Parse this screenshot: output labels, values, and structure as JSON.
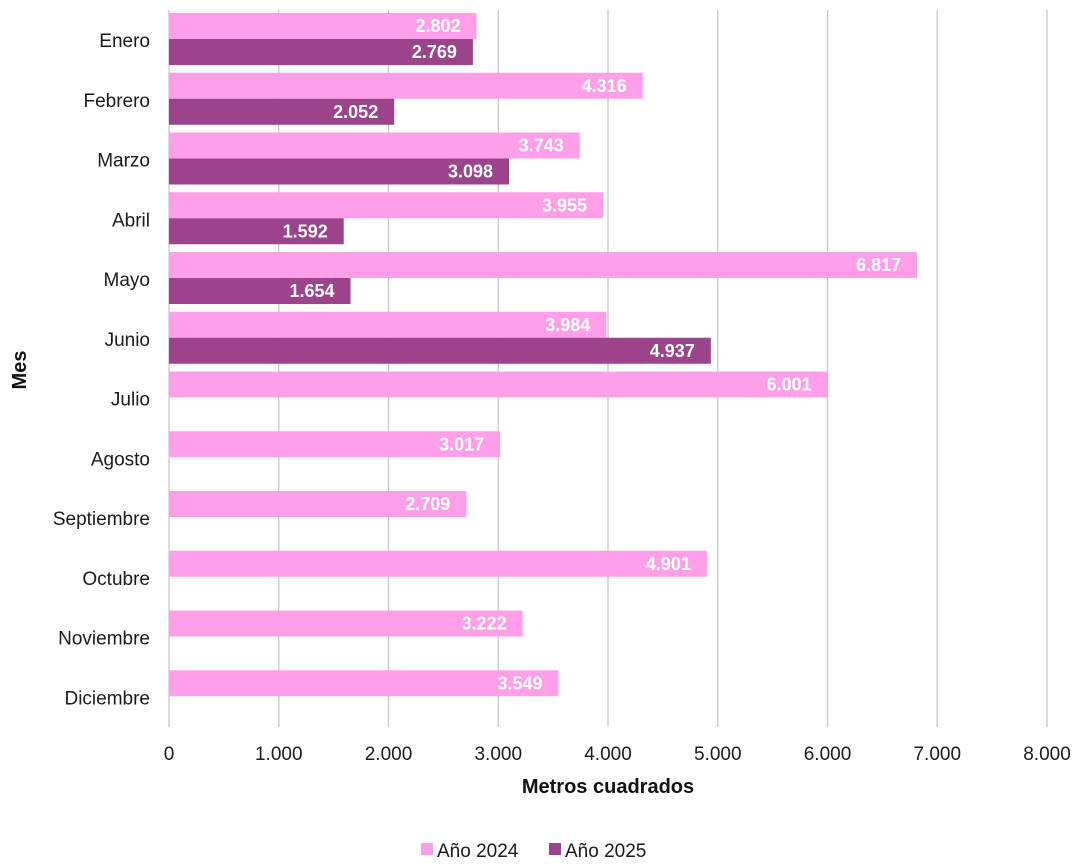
{
  "chart_data": {
    "type": "bar",
    "orientation": "horizontal",
    "categories": [
      "Enero",
      "Febrero",
      "Marzo",
      "Abril",
      "Mayo",
      "Junio",
      "Julio",
      "Agosto",
      "Septiembre",
      "Octubre",
      "Noviembre",
      "Diciembre"
    ],
    "series": [
      {
        "name": "Año 2024",
        "color": "#ff9fe8",
        "values": [
          2802,
          4316,
          3743,
          3955,
          6817,
          3984,
          6001,
          3017,
          2709,
          4901,
          3222,
          3549
        ],
        "labels": [
          "2.802",
          "4.316",
          "3.743",
          "3.955",
          "6.817",
          "3.984",
          "6.001",
          "3.017",
          "2.709",
          "4.901",
          "3.222",
          "3.549"
        ]
      },
      {
        "name": "Año 2025",
        "color": "#9b448b",
        "values": [
          2769,
          2052,
          3098,
          1592,
          1654,
          4937,
          null,
          null,
          null,
          null,
          null,
          null
        ],
        "labels": [
          "2.769",
          "2.052",
          "3.098",
          "1.592",
          "1.654",
          "4.937",
          "",
          "",
          "",
          "",
          "",
          ""
        ]
      }
    ],
    "xlabel": "Metros cuadrados",
    "ylabel": "Mes",
    "xlim": [
      0,
      8000
    ],
    "xticks": [
      0,
      1000,
      2000,
      3000,
      4000,
      5000,
      6000,
      7000,
      8000
    ],
    "xtick_labels": [
      "0",
      "1.000",
      "2.000",
      "3.000",
      "4.000",
      "5.000",
      "6.000",
      "7.000",
      "8.000"
    ],
    "grid": "vertical",
    "legend": "bottom"
  }
}
